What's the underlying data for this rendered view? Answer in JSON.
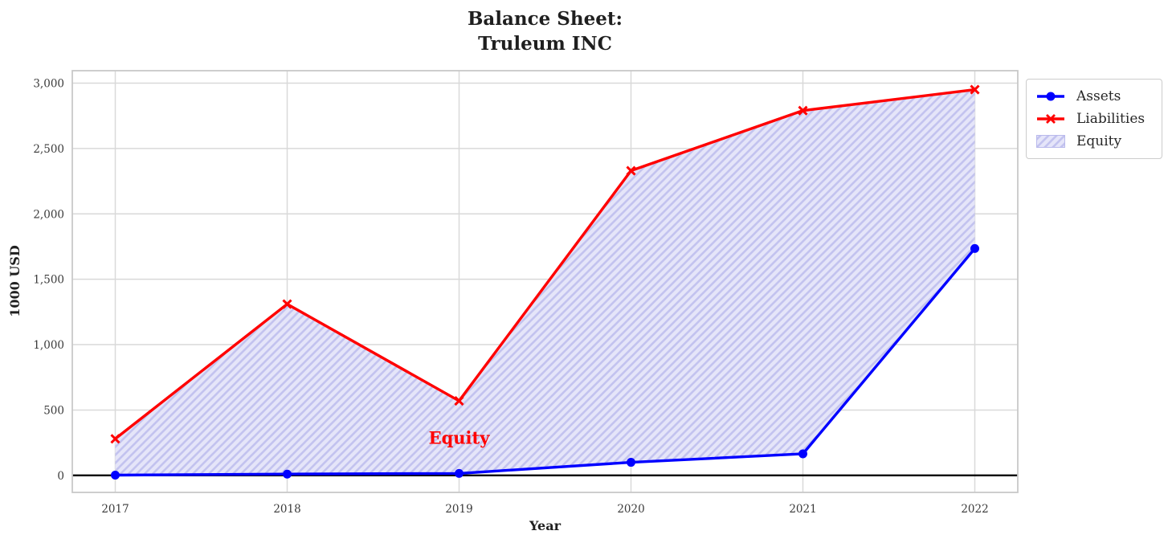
{
  "chart_data": {
    "type": "line",
    "title": "Balance Sheet:\nTruleum INC",
    "xlabel": "Year",
    "ylabel": "1000 USD",
    "x": [
      2017,
      2018,
      2019,
      2020,
      2021,
      2022
    ],
    "series": [
      {
        "name": "Assets",
        "color": "#0000ff",
        "marker": "circle",
        "values": [
          2,
          10,
          15,
          100,
          165,
          1735
        ]
      },
      {
        "name": "Liabilities",
        "color": "#ff0000",
        "marker": "x",
        "values": [
          280,
          1310,
          570,
          2330,
          2790,
          2950
        ]
      }
    ],
    "fill": {
      "name": "Equity",
      "between": [
        "Liabilities",
        "Assets"
      ],
      "base_color": "#e5e5f9",
      "hatch_color": "#c3c3ef",
      "legend_border": "#b9b9ec"
    },
    "annotation": {
      "text": "Equity",
      "color": "#ff0000",
      "x": 2019,
      "y": 290
    },
    "legend_position": "upper-right-outside",
    "grid": true,
    "grid_color": "#d9d9d9",
    "spine_color": "#c9c9c9",
    "zero_line_color": "#000000",
    "xlim": [
      2016.75,
      2022.25
    ],
    "ylim": [
      -130,
      3095
    ],
    "xticks": [
      {
        "value": 2017,
        "label": "2017"
      },
      {
        "value": 2018,
        "label": "2018"
      },
      {
        "value": 2019,
        "label": "2019"
      },
      {
        "value": 2020,
        "label": "2020"
      },
      {
        "value": 2021,
        "label": "2021"
      },
      {
        "value": 2022,
        "label": "2022"
      }
    ],
    "yticks": [
      {
        "value": 0,
        "label": "0"
      },
      {
        "value": 500,
        "label": "500"
      },
      {
        "value": 1000,
        "label": "1,000"
      },
      {
        "value": 1500,
        "label": "1,500"
      },
      {
        "value": 2000,
        "label": "2,000"
      },
      {
        "value": 2500,
        "label": "2,500"
      },
      {
        "value": 3000,
        "label": "3,000"
      }
    ]
  }
}
